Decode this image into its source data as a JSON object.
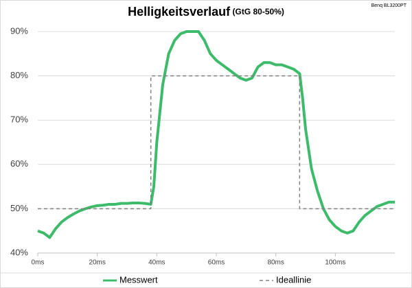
{
  "chart_data": {
    "type": "line",
    "title": "Helligkeitsverlauf",
    "subtitle": "(GtG 80-50%)",
    "annotation": "Benq BL3200PT",
    "xlim": [
      0,
      120
    ],
    "xticks": [
      {
        "value": 0,
        "label": "0ms"
      },
      {
        "value": 20,
        "label": "20ms"
      },
      {
        "value": 40,
        "label": "40ms"
      },
      {
        "value": 60,
        "label": "60ms"
      },
      {
        "value": 80,
        "label": "80ms"
      },
      {
        "value": 100,
        "label": "100ms"
      }
    ],
    "ylim": [
      40,
      90
    ],
    "yticks": [
      {
        "value": 40,
        "label": "40%"
      },
      {
        "value": 50,
        "label": "50%"
      },
      {
        "value": 60,
        "label": "60%"
      },
      {
        "value": 70,
        "label": "70%"
      },
      {
        "value": 80,
        "label": "80%"
      },
      {
        "value": 90,
        "label": "90%"
      }
    ],
    "grid": true,
    "legend": "bottom",
    "series": [
      {
        "name": "Messwert",
        "color": "#3dbb6b",
        "dashed": false,
        "x": [
          0,
          2,
          4,
          6,
          8,
          10,
          12,
          14,
          16,
          18,
          20,
          22,
          24,
          26,
          28,
          30,
          32,
          34,
          36,
          38,
          39,
          40,
          42,
          44,
          46,
          48,
          50,
          52,
          54,
          56,
          58,
          60,
          62,
          64,
          66,
          68,
          70,
          72,
          74,
          76,
          78,
          80,
          82,
          84,
          86,
          88,
          89,
          90,
          92,
          94,
          96,
          98,
          100,
          102,
          104,
          106,
          108,
          110,
          112,
          114,
          116,
          118,
          120
        ],
        "values": [
          45,
          44.5,
          43.5,
          45.5,
          47,
          48,
          48.8,
          49.5,
          50,
          50.4,
          50.7,
          50.8,
          51,
          51,
          51.2,
          51.2,
          51.3,
          51.3,
          51.2,
          51,
          55,
          65,
          78,
          85,
          88,
          89.5,
          90,
          90,
          90,
          88,
          85,
          83.5,
          82.5,
          81.5,
          80.5,
          79.5,
          79,
          79.5,
          82,
          83,
          83,
          82.5,
          82.5,
          82,
          81.5,
          80.5,
          75,
          68,
          59,
          54,
          50,
          47.5,
          46,
          45,
          44.5,
          45,
          47,
          48.5,
          49.5,
          50.5,
          51,
          51.5,
          51.5
        ]
      },
      {
        "name": "Ideallinie",
        "color": "#808080",
        "dashed": true,
        "x": [
          0,
          38,
          38,
          88,
          88,
          120
        ],
        "values": [
          50,
          50,
          80,
          80,
          50,
          50
        ]
      }
    ]
  }
}
